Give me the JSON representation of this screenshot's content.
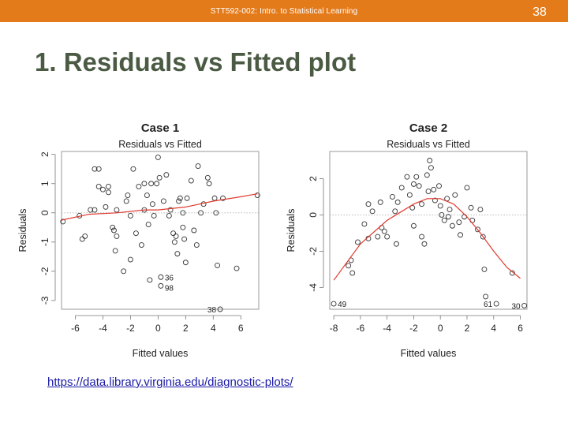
{
  "header": {
    "course_title": "STT592-002: Intro. to Statistical Learning",
    "slide_number": "38",
    "bar_color": "#e47b1b"
  },
  "slide": {
    "title": "1. Residuals vs Fitted plot"
  },
  "source_link": {
    "text": "https://data.library.virginia.edu/diagnostic-plots/"
  },
  "chart_data": [
    {
      "type": "scatter",
      "title": "Case 1",
      "subtitle": "Residuals vs Fitted",
      "xlabel": "Fitted values",
      "ylabel": "Residuals",
      "xlim": [
        -7,
        7.3
      ],
      "ylim": [
        -3.3,
        2.1
      ],
      "xticks": [
        -6,
        -4,
        -2,
        0,
        2,
        4,
        6
      ],
      "yticks": [
        -3,
        -2,
        -1,
        0,
        1,
        2
      ],
      "reference_line": 0,
      "points": [
        [
          -6.9,
          -0.3
        ],
        [
          -5.7,
          -0.1
        ],
        [
          -5.5,
          -0.9
        ],
        [
          -5.3,
          -0.8
        ],
        [
          -4.9,
          0.1
        ],
        [
          -4.6,
          0.1
        ],
        [
          -4.6,
          1.5
        ],
        [
          -4.3,
          1.5
        ],
        [
          -4.3,
          0.9
        ],
        [
          -4.0,
          0.8
        ],
        [
          -3.8,
          0.2
        ],
        [
          -3.6,
          0.9
        ],
        [
          -3.6,
          0.7
        ],
        [
          -3.3,
          -0.5
        ],
        [
          -3.2,
          -0.6
        ],
        [
          -3.0,
          -0.8
        ],
        [
          -3.1,
          -1.3
        ],
        [
          -3.0,
          0.1
        ],
        [
          -2.5,
          -2.0
        ],
        [
          -2.3,
          0.4
        ],
        [
          -2.2,
          0.6
        ],
        [
          -2.0,
          -0.1
        ],
        [
          -2.0,
          -1.6
        ],
        [
          -1.8,
          1.5
        ],
        [
          -1.6,
          -0.7
        ],
        [
          -1.4,
          0.9
        ],
        [
          -1.2,
          -1.1
        ],
        [
          -1.0,
          1.0
        ],
        [
          -1.0,
          0.1
        ],
        [
          -0.8,
          0.6
        ],
        [
          -0.7,
          -0.4
        ],
        [
          -0.6,
          -2.3
        ],
        [
          -0.5,
          1.0
        ],
        [
          -0.4,
          0.3
        ],
        [
          -0.3,
          -0.1
        ],
        [
          -0.1,
          1.0
        ],
        [
          0.0,
          1.9
        ],
        [
          0.1,
          1.2
        ],
        [
          0.2,
          -2.2
        ],
        [
          0.2,
          -2.5
        ],
        [
          0.4,
          0.4
        ],
        [
          0.6,
          1.3
        ],
        [
          0.8,
          -0.1
        ],
        [
          0.9,
          0.1
        ],
        [
          1.1,
          -0.7
        ],
        [
          1.2,
          -1.0
        ],
        [
          1.3,
          -0.8
        ],
        [
          1.4,
          -1.4
        ],
        [
          1.5,
          0.4
        ],
        [
          1.6,
          0.5
        ],
        [
          1.8,
          -0.5
        ],
        [
          1.8,
          0.0
        ],
        [
          1.9,
          -0.9
        ],
        [
          2.0,
          -1.7
        ],
        [
          2.1,
          0.5
        ],
        [
          2.4,
          1.1
        ],
        [
          2.6,
          -0.6
        ],
        [
          2.8,
          -1.1
        ],
        [
          2.9,
          1.6
        ],
        [
          3.1,
          0.0
        ],
        [
          3.3,
          0.3
        ],
        [
          3.6,
          1.2
        ],
        [
          3.7,
          1.0
        ],
        [
          4.1,
          0.5
        ],
        [
          4.2,
          0.0
        ],
        [
          4.3,
          -1.8
        ],
        [
          4.5,
          -3.3
        ],
        [
          4.7,
          0.5
        ],
        [
          5.7,
          -1.9
        ],
        [
          7.2,
          0.6
        ]
      ],
      "labeled_points": [
        {
          "label": "36",
          "x": 0.2,
          "y": -2.2
        },
        {
          "label": "98",
          "x": 0.2,
          "y": -2.5
        },
        {
          "label": "38",
          "x": 4.5,
          "y": -3.3
        }
      ],
      "trend": [
        [
          -7,
          -0.25
        ],
        [
          -5,
          -0.05
        ],
        [
          -3,
          0.0
        ],
        [
          -1,
          0.1
        ],
        [
          0,
          0.1
        ],
        [
          2,
          0.2
        ],
        [
          4,
          0.4
        ],
        [
          6,
          0.55
        ],
        [
          7.2,
          0.65
        ]
      ]
    },
    {
      "type": "scatter",
      "title": "Case 2",
      "subtitle": "Residuals vs Fitted",
      "xlabel": "Fitted values",
      "ylabel": "Residuals",
      "xlim": [
        -8.3,
        6.5
      ],
      "ylim": [
        -5.2,
        3.5
      ],
      "xticks": [
        -8,
        -6,
        -4,
        -2,
        0,
        2,
        4,
        6
      ],
      "yticks": [
        -4,
        -2,
        0,
        2
      ],
      "reference_line": 0,
      "points": [
        [
          -8.0,
          -4.9
        ],
        [
          -6.9,
          -2.8
        ],
        [
          -6.7,
          -2.5
        ],
        [
          -6.6,
          -3.2
        ],
        [
          -6.2,
          -1.5
        ],
        [
          -5.7,
          -0.5
        ],
        [
          -5.4,
          0.6
        ],
        [
          -5.4,
          -1.3
        ],
        [
          -5.1,
          0.2
        ],
        [
          -4.7,
          -1.2
        ],
        [
          -4.5,
          0.7
        ],
        [
          -4.4,
          -0.7
        ],
        [
          -4.2,
          -0.9
        ],
        [
          -4.0,
          -1.2
        ],
        [
          -3.6,
          1.0
        ],
        [
          -3.4,
          0.2
        ],
        [
          -3.2,
          0.7
        ],
        [
          -3.3,
          -1.6
        ],
        [
          -2.9,
          1.5
        ],
        [
          -2.5,
          2.1
        ],
        [
          -2.3,
          1.1
        ],
        [
          -2.1,
          0.4
        ],
        [
          -2.0,
          1.7
        ],
        [
          -2.0,
          -0.6
        ],
        [
          -1.8,
          2.1
        ],
        [
          -1.6,
          1.6
        ],
        [
          -1.4,
          0.6
        ],
        [
          -1.4,
          -1.2
        ],
        [
          -1.2,
          -1.6
        ],
        [
          -1.0,
          2.2
        ],
        [
          -0.9,
          1.3
        ],
        [
          -0.8,
          3.0
        ],
        [
          -0.7,
          2.6
        ],
        [
          -0.5,
          1.4
        ],
        [
          -0.4,
          0.8
        ],
        [
          -0.1,
          1.6
        ],
        [
          0.0,
          0.5
        ],
        [
          0.1,
          0.0
        ],
        [
          0.3,
          -0.3
        ],
        [
          0.5,
          0.9
        ],
        [
          0.6,
          -0.1
        ],
        [
          0.7,
          0.3
        ],
        [
          0.9,
          -0.6
        ],
        [
          1.1,
          1.1
        ],
        [
          1.4,
          -0.4
        ],
        [
          1.5,
          -1.1
        ],
        [
          1.8,
          -0.1
        ],
        [
          2.0,
          1.5
        ],
        [
          2.3,
          0.4
        ],
        [
          2.4,
          -0.3
        ],
        [
          2.8,
          -0.8
        ],
        [
          3.0,
          0.3
        ],
        [
          3.2,
          -1.2
        ],
        [
          3.3,
          -3.0
        ],
        [
          3.4,
          -4.5
        ],
        [
          4.2,
          -4.9
        ],
        [
          5.4,
          -3.2
        ],
        [
          6.3,
          -5.0
        ]
      ],
      "labeled_points": [
        {
          "label": "49",
          "x": -8.0,
          "y": -4.9
        },
        {
          "label": "61",
          "x": 4.2,
          "y": -4.9
        },
        {
          "label": "30",
          "x": 6.3,
          "y": -5.0
        }
      ],
      "trend": [
        [
          -8,
          -3.6
        ],
        [
          -6,
          -1.6
        ],
        [
          -4,
          -0.3
        ],
        [
          -2,
          0.6
        ],
        [
          -1,
          0.9
        ],
        [
          0,
          0.9
        ],
        [
          1,
          0.6
        ],
        [
          2,
          -0.1
        ],
        [
          3,
          -1.0
        ],
        [
          4,
          -2.0
        ],
        [
          5,
          -2.9
        ],
        [
          6,
          -3.5
        ]
      ]
    }
  ]
}
